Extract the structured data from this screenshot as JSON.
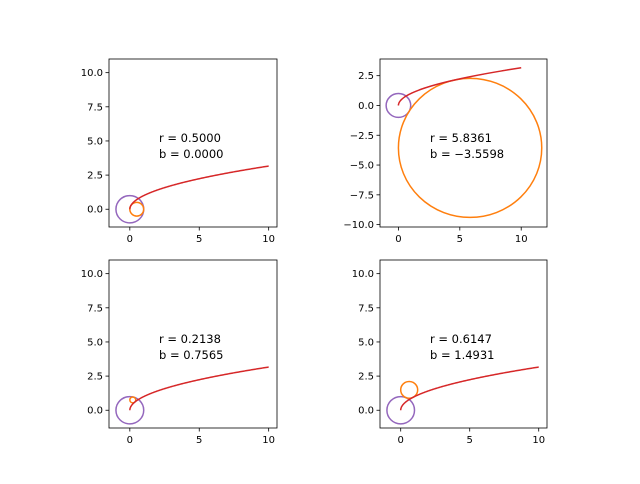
{
  "chart_data": [
    {
      "type": "line",
      "xlim": [
        -1.5,
        10.6
      ],
      "ylim": [
        -1.3,
        11.0
      ],
      "xticks": [
        0,
        5,
        10
      ],
      "xtick_labels": [
        "0",
        "5",
        "10"
      ],
      "yticks": [
        0.0,
        2.5,
        5.0,
        7.5,
        10.0
      ],
      "ytick_labels": [
        "0.0",
        "2.5",
        "5.0",
        "7.5",
        "10.0"
      ],
      "curve": {
        "function": "sqrt(x)",
        "x_range": [
          0,
          10
        ],
        "color": "#d62728"
      },
      "circles": [
        {
          "cx": 0,
          "cy": 0,
          "r": 1.0,
          "color": "#9467bd"
        },
        {
          "cx": 0.5,
          "cy": 0.0,
          "r": 0.5,
          "color": "#ff7f0e"
        }
      ],
      "annotation": {
        "r_text": "r = 0.5000",
        "b_text": "b = 0.0000"
      },
      "r": 0.5,
      "b": 0.0
    },
    {
      "type": "line",
      "xlim": [
        -1.5,
        12.1
      ],
      "ylim": [
        -10.2,
        3.9
      ],
      "xticks": [
        0,
        5,
        10
      ],
      "xtick_labels": [
        "0",
        "5",
        "10"
      ],
      "yticks": [
        2.5,
        0.0,
        -2.5,
        -5.0,
        -7.5,
        -10.0
      ],
      "ytick_labels": [
        "2.5",
        "0.0",
        "−2.5",
        "−5.0",
        "−7.5",
        "−10.0"
      ],
      "curve": {
        "function": "sqrt(x)",
        "x_range": [
          0,
          10
        ],
        "color": "#d62728"
      },
      "circles": [
        {
          "cx": 0,
          "cy": 0,
          "r": 1.0,
          "color": "#9467bd"
        },
        {
          "cx": 5.8361,
          "cy": -3.5598,
          "r": 5.8361,
          "color": "#ff7f0e"
        }
      ],
      "annotation": {
        "r_text": "r = 5.8361",
        "b_text": "b = −3.5598"
      },
      "r": 5.8361,
      "b": -3.5598
    },
    {
      "type": "line",
      "xlim": [
        -1.5,
        10.6
      ],
      "ylim": [
        -1.3,
        11.0
      ],
      "xticks": [
        0,
        5,
        10
      ],
      "xtick_labels": [
        "0",
        "5",
        "10"
      ],
      "yticks": [
        0.0,
        2.5,
        5.0,
        7.5,
        10.0
      ],
      "ytick_labels": [
        "0.0",
        "2.5",
        "5.0",
        "7.5",
        "10.0"
      ],
      "curve": {
        "function": "sqrt(x)",
        "x_range": [
          0,
          10
        ],
        "color": "#d62728"
      },
      "circles": [
        {
          "cx": 0,
          "cy": 0,
          "r": 1.0,
          "color": "#9467bd"
        },
        {
          "cx": 0.2138,
          "cy": 0.7565,
          "r": 0.2138,
          "color": "#ff7f0e"
        }
      ],
      "annotation": {
        "r_text": "r = 0.2138",
        "b_text": "b = 0.7565"
      },
      "r": 0.2138,
      "b": 0.7565
    },
    {
      "type": "line",
      "xlim": [
        -1.5,
        10.6
      ],
      "ylim": [
        -1.3,
        11.0
      ],
      "xticks": [
        0,
        5,
        10
      ],
      "xtick_labels": [
        "0",
        "5",
        "10"
      ],
      "yticks": [
        0.0,
        2.5,
        5.0,
        7.5,
        10.0
      ],
      "ytick_labels": [
        "0.0",
        "2.5",
        "5.0",
        "7.5",
        "10.0"
      ],
      "curve": {
        "function": "sqrt(x)",
        "x_range": [
          0,
          10
        ],
        "color": "#d62728"
      },
      "circles": [
        {
          "cx": 0,
          "cy": 0,
          "r": 1.0,
          "color": "#9467bd"
        },
        {
          "cx": 0.6147,
          "cy": 1.4931,
          "r": 0.6147,
          "color": "#ff7f0e"
        }
      ],
      "annotation": {
        "r_text": "r = 0.6147",
        "b_text": "b = 1.4931"
      },
      "r": 0.6147,
      "b": 1.4931
    }
  ]
}
